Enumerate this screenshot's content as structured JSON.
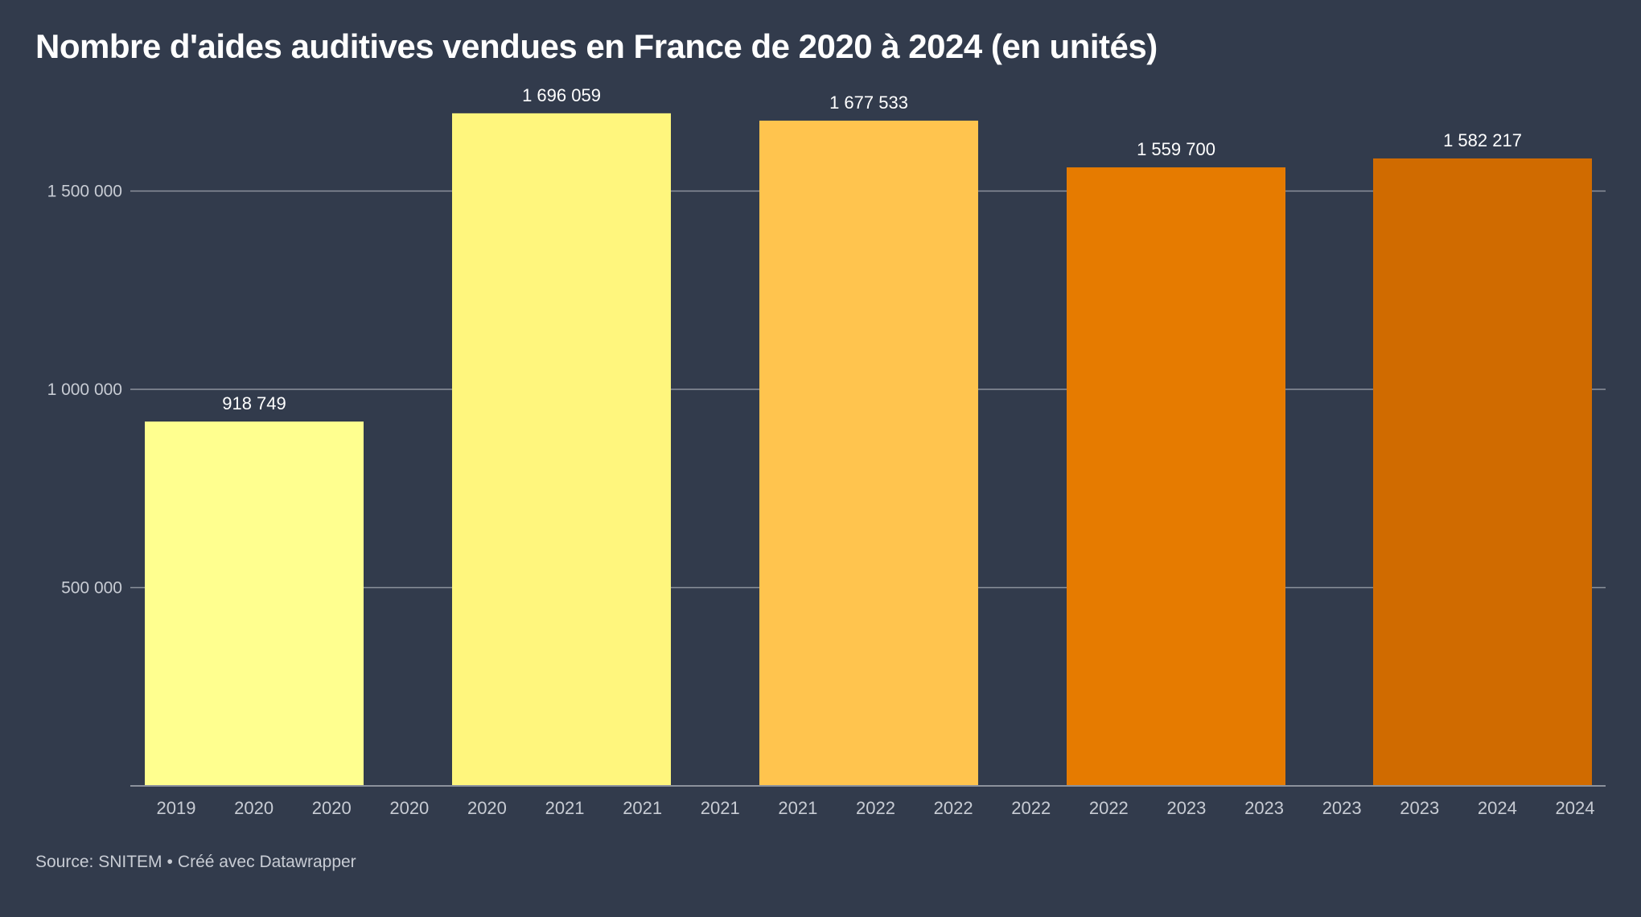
{
  "title": "Nombre d'aides auditives vendues en France de 2020 à 2024 (en unités)",
  "footer": {
    "source": "Source: SNITEM",
    "separator": "•",
    "credit": "Créé avec Datawrapper"
  },
  "colors": {
    "background": "#323b4c",
    "gridline": "#8c929c",
    "tick_text": "#c8ccd4",
    "label_text": "#ffffff"
  },
  "chart_data": {
    "type": "bar",
    "title": "Nombre d'aides auditives vendues en France de 2020 à 2024 (en unités)",
    "xlabel": "",
    "ylabel": "",
    "ylim": [
      0,
      1750000
    ],
    "y_ticks": [
      {
        "value": 500000,
        "label": "500 000"
      },
      {
        "value": 1000000,
        "label": "1 000 000"
      },
      {
        "value": 1500000,
        "label": "1 500 000"
      }
    ],
    "x_tick_labels": [
      "2019",
      "2020",
      "2020",
      "2020",
      "2020",
      "2021",
      "2021",
      "2021",
      "2021",
      "2022",
      "2022",
      "2022",
      "2022",
      "2023",
      "2023",
      "2023",
      "2023",
      "2024",
      "2024"
    ],
    "grid": true,
    "bars": [
      {
        "value": 918749,
        "label": "918 749",
        "color": "#ffff8f"
      },
      {
        "value": 1696059,
        "label": "1 696 059",
        "color": "#fff67d"
      },
      {
        "value": 1677533,
        "label": "1 677 533",
        "color": "#ffc44e"
      },
      {
        "value": 1559700,
        "label": "1 559 700",
        "color": "#e67b00"
      },
      {
        "value": 1582217,
        "label": "1 582 217",
        "color": "#d06b00"
      }
    ]
  }
}
